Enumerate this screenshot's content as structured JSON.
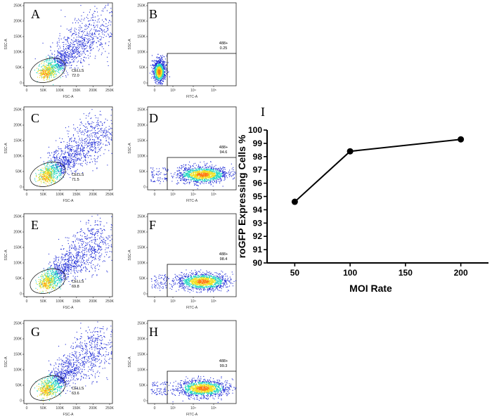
{
  "figure": {
    "scatter_panels": [
      {
        "letter": "A",
        "kind": "cells",
        "xlabel": "FSC-A",
        "ylabel": "SSC-A",
        "gate_label": "CELLS",
        "gate_value": "72.0",
        "y_ticks": [
          "250K",
          "200K",
          "150K",
          "100K",
          "50K",
          "0"
        ],
        "x_ticks": [
          "0",
          "50K",
          "100K",
          "150K",
          "200K",
          "250K"
        ]
      },
      {
        "letter": "B",
        "kind": "fitc",
        "xlabel": "FITC-A",
        "ylabel": "SSC-A",
        "gate_label": "488+",
        "gate_value": "0.25",
        "y_ticks": [
          "250K",
          "200K",
          "150K",
          "100K",
          "50K",
          "0"
        ],
        "x_ticks": [
          "0",
          "10³",
          "10⁴",
          "10⁵"
        ]
      },
      {
        "letter": "C",
        "kind": "cells",
        "xlabel": "FSC-A",
        "ylabel": "SSC-A",
        "gate_label": "CELLS",
        "gate_value": "71.5",
        "y_ticks": [
          "250K",
          "200K",
          "150K",
          "100K",
          "50K",
          "0"
        ],
        "x_ticks": [
          "0",
          "50K",
          "100K",
          "150K",
          "200K",
          "250K"
        ]
      },
      {
        "letter": "D",
        "kind": "fitc",
        "xlabel": "FITC-A",
        "ylabel": "SSC-A",
        "gate_label": "488+",
        "gate_value": "94.6",
        "y_ticks": [
          "250K",
          "200K",
          "150K",
          "100K",
          "50K",
          "0"
        ],
        "x_ticks": [
          "0",
          "10³",
          "10⁴",
          "10⁵"
        ]
      },
      {
        "letter": "E",
        "kind": "cells",
        "xlabel": "FSC-A",
        "ylabel": "SSC-A",
        "gate_label": "CELLS",
        "gate_value": "69.8",
        "y_ticks": [
          "250K",
          "200K",
          "150K",
          "100K",
          "50K",
          "0"
        ],
        "x_ticks": [
          "0",
          "50K",
          "100K",
          "150K",
          "200K",
          "250K"
        ]
      },
      {
        "letter": "F",
        "kind": "fitc",
        "xlabel": "FITC-A",
        "ylabel": "SSC-A",
        "gate_label": "488+",
        "gate_value": "98.4",
        "y_ticks": [
          "250K",
          "200K",
          "150K",
          "100K",
          "50K",
          "0"
        ],
        "x_ticks": [
          "0",
          "10³",
          "10⁴",
          "10⁵"
        ]
      },
      {
        "letter": "G",
        "kind": "cells",
        "xlabel": "FSC-A",
        "ylabel": "SSC-A",
        "gate_label": "CELLS",
        "gate_value": "63.6",
        "y_ticks": [
          "250K",
          "200K",
          "150K",
          "100K",
          "50K",
          "0"
        ],
        "x_ticks": [
          "0",
          "50K",
          "100K",
          "150K",
          "200K",
          "250K"
        ]
      },
      {
        "letter": "H",
        "kind": "fitc",
        "xlabel": "FITC-A",
        "ylabel": "SSC-A",
        "gate_label": "488+",
        "gate_value": "99.3",
        "y_ticks": [
          "250K",
          "200K",
          "150K",
          "100K",
          "50K",
          "0"
        ],
        "x_ticks": [
          "0",
          "10³",
          "10⁴",
          "10⁵"
        ]
      }
    ],
    "colors": {
      "density_low": "#1f2bd6",
      "density_mid": "#1fd6c0",
      "density_high": "#f0e020",
      "density_peak": "#ff7a10",
      "line": "#000000"
    }
  },
  "chart_data": {
    "type": "line",
    "panel_letter": "I",
    "title": "",
    "x": [
      50,
      100,
      200
    ],
    "values": [
      94.6,
      98.4,
      99.3
    ],
    "xlabel": "MOI Rate",
    "ylabel": "roGFP Expressing Cells %",
    "xlim": [
      25,
      225
    ],
    "ylim": [
      90,
      100
    ],
    "x_ticks": [
      50,
      100,
      150,
      200
    ],
    "y_ticks": [
      90,
      91,
      92,
      93,
      94,
      95,
      96,
      97,
      98,
      99,
      100
    ],
    "grid": false,
    "marker": "circle"
  }
}
